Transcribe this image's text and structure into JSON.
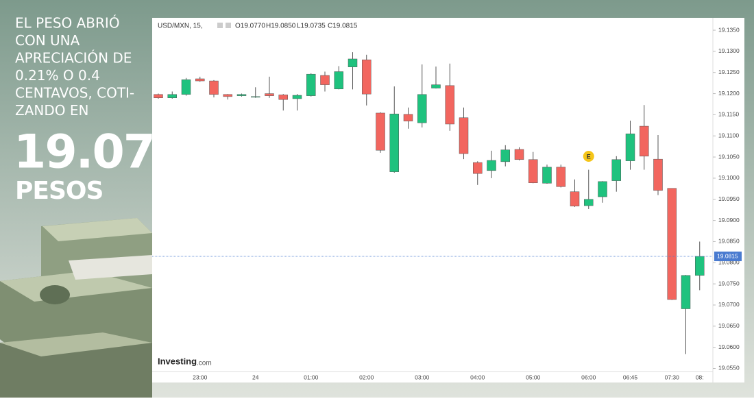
{
  "overlay": {
    "headline_lines": [
      "EL PESO  ABRIÓ",
      "CON UNA",
      "APRECIACIÓN DE",
      "0.21% O 0.4",
      "CENTAVOS, COTI-",
      "ZANDO EN"
    ],
    "big_number": "19.07",
    "unit": "PESOS"
  },
  "chart_data": {
    "type": "candlestick",
    "symbol": "USD/MXN, 15,",
    "ohlc_labels": [
      "O19.0770",
      "H19.0850",
      "L19.0735",
      "C19.0815"
    ],
    "brand": "Investing",
    "brand_suffix": ".com",
    "categories": [
      null,
      null,
      null,
      "23:00",
      null,
      null,
      null,
      "24",
      null,
      null,
      null,
      "01:00",
      null,
      null,
      null,
      "02:00",
      null,
      null,
      null,
      "03:00",
      null,
      null,
      null,
      "04:00",
      null,
      null,
      null,
      "05:00",
      null,
      null,
      null,
      "06:00",
      null,
      null,
      "06:45",
      null,
      null,
      "07:30",
      null,
      "08:"
    ],
    "open": [
      19.1198,
      19.119,
      19.1198,
      19.1235,
      19.123,
      19.1198,
      19.1195,
      19.1192,
      19.12,
      19.1197,
      19.1188,
      19.1195,
      19.1243,
      19.1211,
      19.1263,
      19.128,
      19.1154,
      19.1015,
      19.1151,
      19.1131,
      19.1213,
      19.1219,
      19.1143,
      19.1037,
      19.1018,
      19.1039,
      19.1068,
      19.1044,
      19.0988,
      19.1026,
      19.0968,
      19.0935,
      19.0956,
      19.0994,
      19.1041,
      19.1123,
      19.1045,
      19.0976,
      19.0691,
      19.077
    ],
    "high": [
      19.12,
      19.1205,
      19.1237,
      19.124,
      19.1232,
      19.1199,
      19.12,
      19.1215,
      19.124,
      19.1199,
      19.1199,
      19.1248,
      19.1252,
      19.1265,
      19.1298,
      19.1292,
      19.1156,
      19.1217,
      19.1167,
      19.1269,
      19.1264,
      19.1271,
      19.1167,
      19.104,
      19.1065,
      19.1078,
      19.1073,
      19.1062,
      19.1032,
      19.1032,
      19.0997,
      19.102,
      19.0993,
      19.1052,
      19.1136,
      19.1173,
      19.1102,
      19.0976,
      19.0771,
      19.085
    ],
    "low": [
      19.1188,
      19.1188,
      19.1195,
      19.1228,
      19.1191,
      19.1186,
      19.1193,
      19.119,
      19.119,
      19.116,
      19.116,
      19.1193,
      19.1205,
      19.121,
      19.121,
      19.1172,
      19.106,
      19.1013,
      19.1117,
      19.112,
      19.1212,
      19.1112,
      19.1045,
      19.0984,
      19.1,
      19.1028,
      19.1042,
      19.0988,
      19.0987,
      19.0978,
      19.0932,
      19.0927,
      19.0942,
      19.0968,
      19.102,
      19.102,
      19.096,
      19.0712,
      19.0584,
      19.0735
    ],
    "close": [
      19.119,
      19.1198,
      19.1233,
      19.123,
      19.1198,
      19.1193,
      19.1198,
      19.1193,
      19.1195,
      19.1186,
      19.1196,
      19.1246,
      19.1221,
      19.1252,
      19.1282,
      19.1199,
      19.1066,
      19.1152,
      19.1135,
      19.1198,
      19.1221,
      19.1128,
      19.1058,
      19.1011,
      19.1042,
      19.1067,
      19.1044,
      19.0989,
      19.1026,
      19.098,
      19.0934,
      19.095,
      19.0992,
      19.1044,
      19.1105,
      19.1052,
      19.0971,
      19.0713,
      19.077,
      19.0815
    ],
    "up_color": "#1fc27e",
    "down_color": "#f2665f",
    "current_price": {
      "value": 19.0815,
      "label": "19.0815"
    },
    "events": [
      {
        "label": "E",
        "at": 31
      }
    ],
    "ylim": [
      19.052,
      19.1376
    ],
    "yticks": [
      {
        "value": 19.135,
        "label": "19.1350"
      },
      {
        "value": 19.13,
        "label": "19.1300"
      },
      {
        "value": 19.125,
        "label": "19.1250"
      },
      {
        "value": 19.12,
        "label": "19.1200"
      },
      {
        "value": 19.115,
        "label": "19.1150"
      },
      {
        "value": 19.11,
        "label": "19.1100"
      },
      {
        "value": 19.105,
        "label": "19.1050"
      },
      {
        "value": 19.1,
        "label": "19.1000"
      },
      {
        "value": 19.095,
        "label": "19.0950"
      },
      {
        "value": 19.09,
        "label": "19.0900"
      },
      {
        "value": 19.085,
        "label": "19.0850"
      },
      {
        "value": 19.08,
        "label": "19.0800"
      },
      {
        "value": 19.075,
        "label": "19.0750"
      },
      {
        "value": 19.07,
        "label": "19.0700"
      },
      {
        "value": 19.065,
        "label": "19.0650"
      },
      {
        "value": 19.06,
        "label": "19.0600"
      },
      {
        "value": 19.055,
        "label": "19.0550"
      }
    ]
  }
}
